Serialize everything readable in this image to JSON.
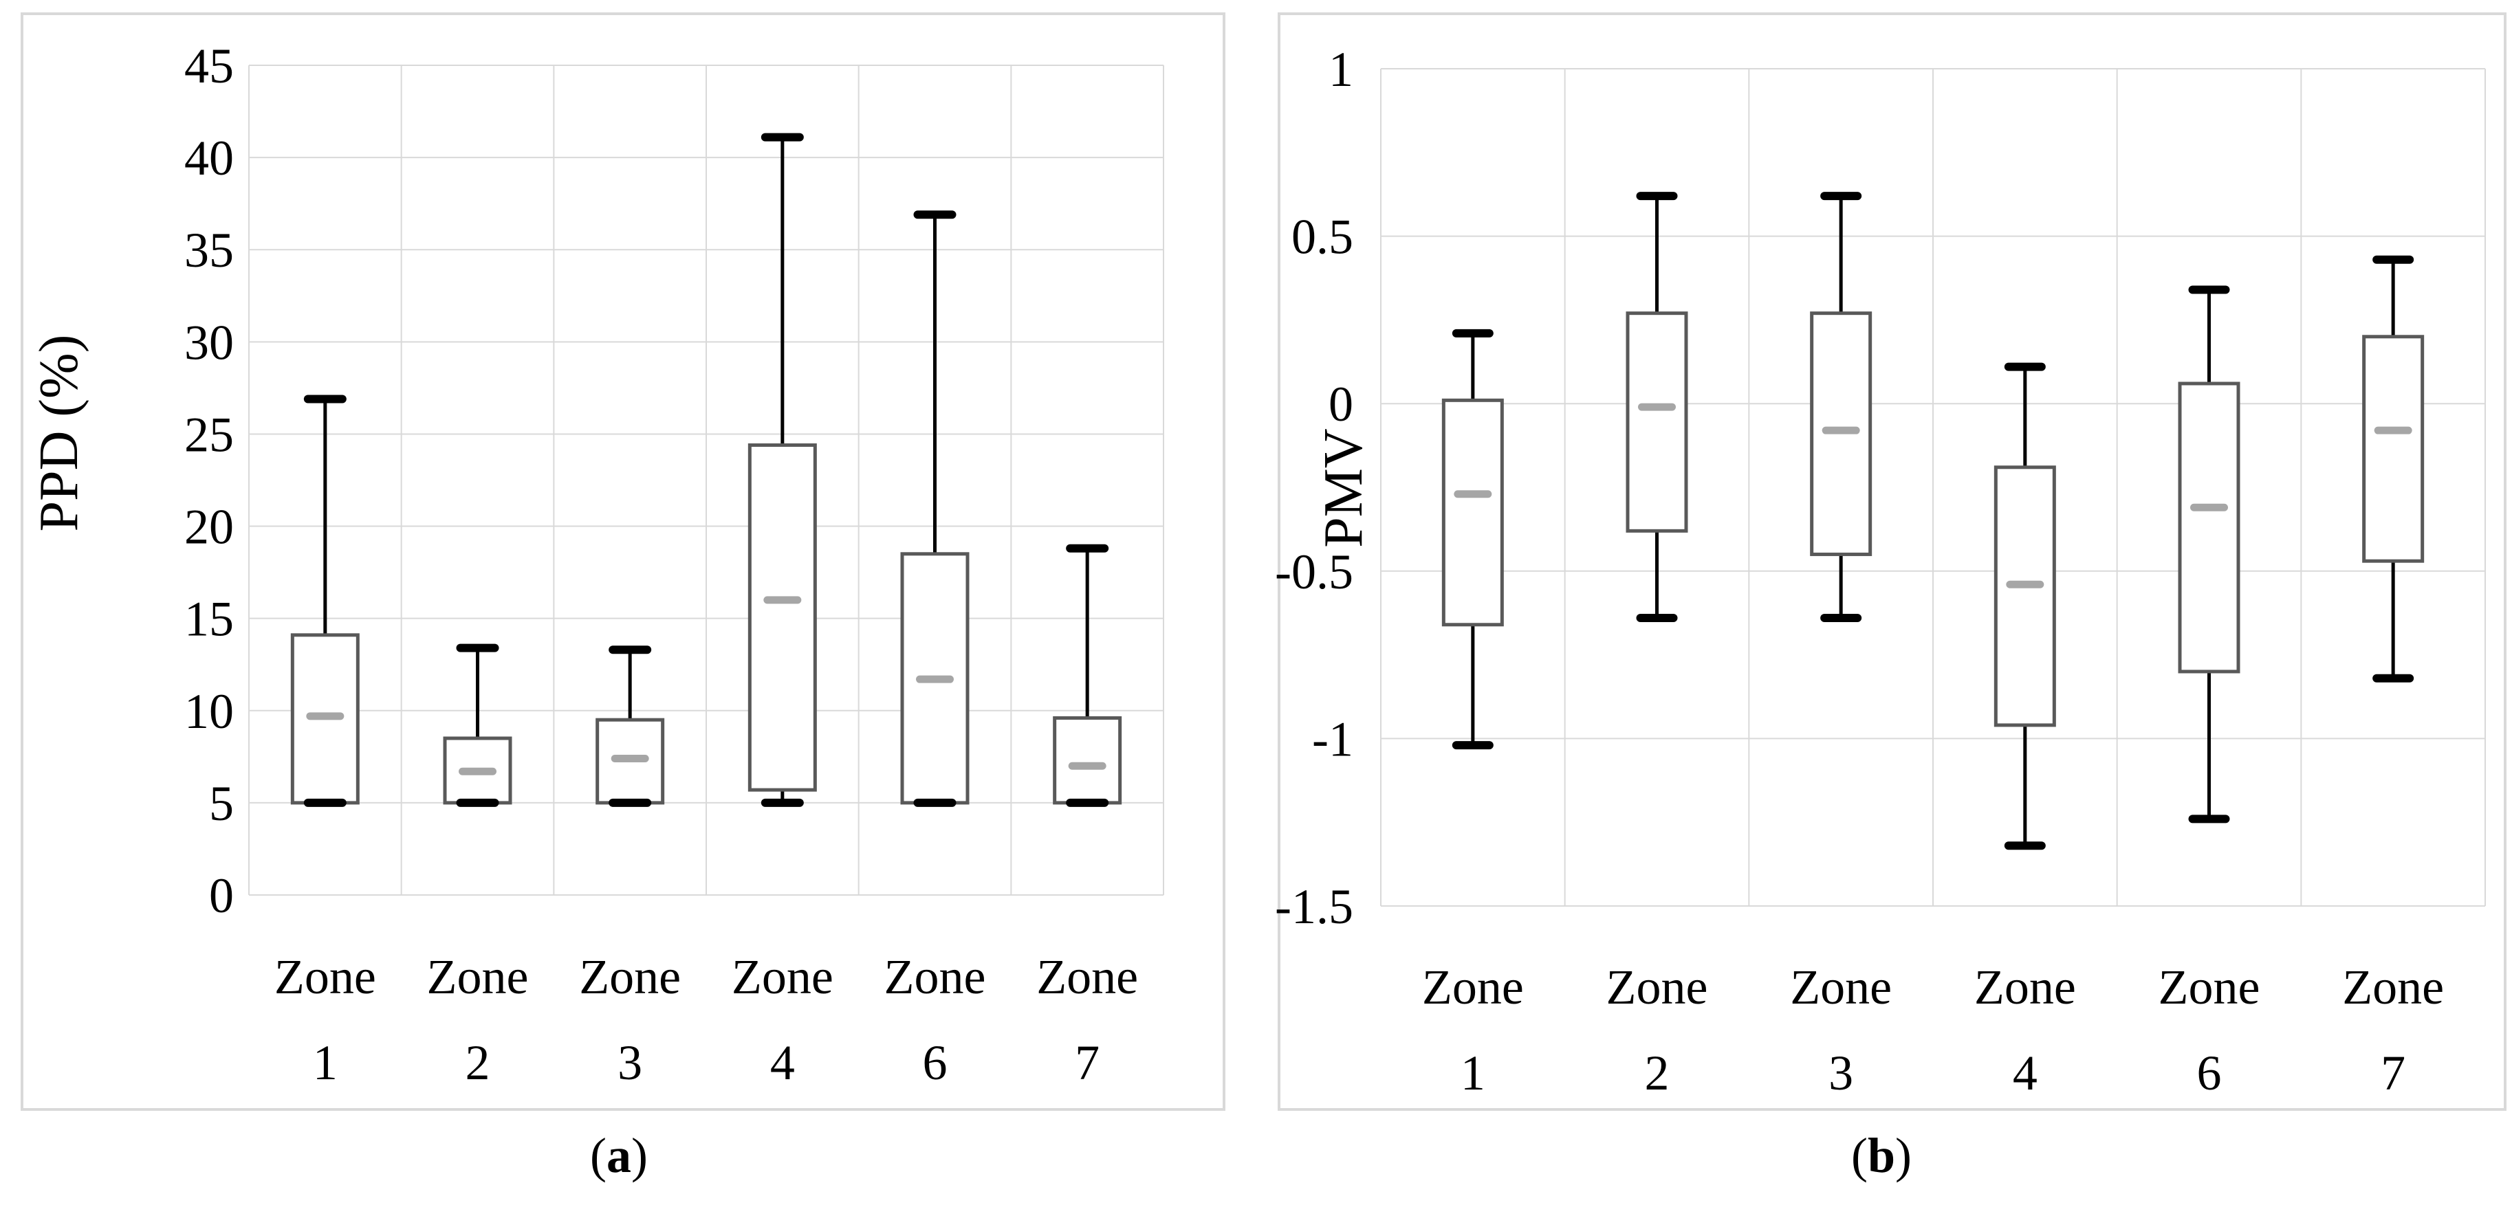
{
  "chart_data": [
    {
      "type": "box",
      "panel": "a",
      "caption_open": "(",
      "caption_letter": "a",
      "caption_close": ")",
      "ylabel": "PPD (%)",
      "xlabel": "",
      "ylim": [
        0,
        45
      ],
      "yticks": [
        0,
        5,
        10,
        15,
        20,
        25,
        30,
        35,
        40,
        45
      ],
      "ytick_labels": [
        "0",
        "5",
        "10",
        "15",
        "20",
        "25",
        "30",
        "35",
        "40",
        "45"
      ],
      "categories": [
        {
          "line1": "Zone",
          "line2": "1"
        },
        {
          "line1": "Zone",
          "line2": "2"
        },
        {
          "line1": "Zone",
          "line2": "3"
        },
        {
          "line1": "Zone",
          "line2": "4"
        },
        {
          "line1": "Zone",
          "line2": "6"
        },
        {
          "line1": "Zone",
          "line2": "7"
        }
      ],
      "boxes": [
        {
          "min": 5,
          "q1": 5,
          "median": 9.7,
          "q3": 14.1,
          "max": 26.9
        },
        {
          "min": 5,
          "q1": 5,
          "median": 6.7,
          "q3": 8.5,
          "max": 13.4
        },
        {
          "min": 5,
          "q1": 5,
          "median": 7.4,
          "q3": 9.5,
          "max": 13.3
        },
        {
          "min": 5,
          "q1": 5.7,
          "median": 16.0,
          "q3": 24.4,
          "max": 41.1
        },
        {
          "min": 5,
          "q1": 5,
          "median": 11.7,
          "q3": 18.5,
          "max": 36.9
        },
        {
          "min": 5,
          "q1": 5,
          "median": 7.0,
          "q3": 9.6,
          "max": 18.8
        }
      ],
      "grid": true
    },
    {
      "type": "box",
      "panel": "b",
      "caption_open": "(",
      "caption_letter": "b",
      "caption_close": ")",
      "ylabel": "PMV",
      "xlabel": "",
      "ylim": [
        -1.5,
        1
      ],
      "yticks": [
        -1.5,
        -1,
        -0.5,
        0,
        0.5,
        1
      ],
      "ytick_labels": [
        "-1.5",
        "-1",
        "-0.5",
        "0",
        "0.5",
        "1"
      ],
      "categories": [
        {
          "line1": "Zone",
          "line2": "1"
        },
        {
          "line1": "Zone",
          "line2": "2"
        },
        {
          "line1": "Zone",
          "line2": "3"
        },
        {
          "line1": "Zone",
          "line2": "4"
        },
        {
          "line1": "Zone",
          "line2": "6"
        },
        {
          "line1": "Zone",
          "line2": "7"
        }
      ],
      "boxes": [
        {
          "min": -1.02,
          "q1": -0.66,
          "median": -0.27,
          "q3": 0.01,
          "max": 0.21
        },
        {
          "min": -0.64,
          "q1": -0.38,
          "median": -0.01,
          "q3": 0.27,
          "max": 0.62
        },
        {
          "min": -0.64,
          "q1": -0.45,
          "median": -0.08,
          "q3": 0.27,
          "max": 0.62
        },
        {
          "min": -1.32,
          "q1": -0.96,
          "median": -0.54,
          "q3": -0.19,
          "max": 0.11
        },
        {
          "min": -1.24,
          "q1": -0.8,
          "median": -0.31,
          "q3": 0.06,
          "max": 0.34
        },
        {
          "min": -0.82,
          "q1": -0.47,
          "median": -0.08,
          "q3": 0.2,
          "max": 0.43
        }
      ],
      "grid": true
    }
  ],
  "colors": {
    "box_stroke": "#595959",
    "whisker": "#000000",
    "median": "#a6a6a6",
    "grid": "#d9d9d9",
    "frame": "#d9d9d9"
  }
}
